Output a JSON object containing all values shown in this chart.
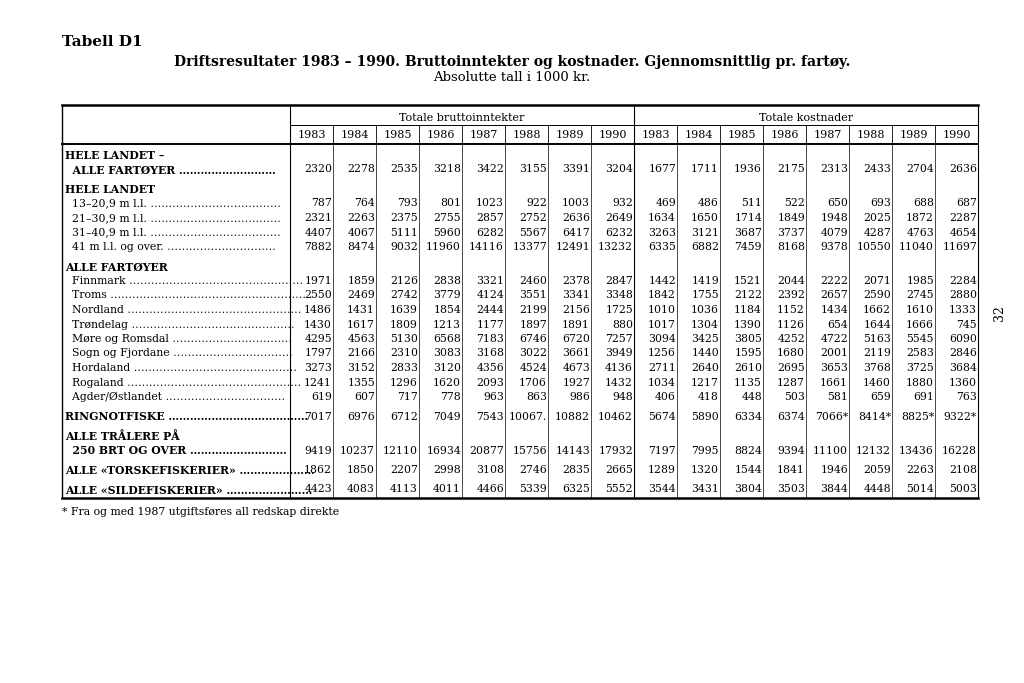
{
  "title_label": "Tabell D1",
  "title_main": "Driftsresultater 1983 – 1990. Bruttoinntekter og kostnader. Gjennomsnittlig pr. fartøy.",
  "title_sub": "Absolutte tall i 1000 kr.",
  "col_header_left": "Totale bruttoinntekter",
  "col_header_right": "Totale kostnader",
  "years": [
    "1983",
    "1984",
    "1985",
    "1986",
    "1987",
    "1988",
    "1989",
    "1990"
  ],
  "footnote": "* Fra og med 1987 utgiftsføres all redskap direkte",
  "page_number": "32",
  "rows": [
    {
      "label1": "HELE LANDET –",
      "label2": "  ALLE FARTØYER ………………………",
      "bold1": true,
      "bold2": true,
      "brutto": [
        "2320",
        "2278",
        "2535",
        "3218",
        "3422",
        "3155",
        "3391",
        "3204"
      ],
      "kostnader": [
        "1677",
        "1711",
        "1936",
        "2175",
        "2313",
        "2433",
        "2704",
        "2636"
      ],
      "blank_before": true,
      "two_line": true
    },
    {
      "label1": "HELE LANDET",
      "label2": "",
      "bold1": true,
      "bold2": false,
      "brutto": [
        null,
        null,
        null,
        null,
        null,
        null,
        null,
        null
      ],
      "kostnader": [
        null,
        null,
        null,
        null,
        null,
        null,
        null,
        null
      ],
      "blank_before": true,
      "two_line": false,
      "header_only": true
    },
    {
      "label1": "  13–20,9 m l.l. ………………………………",
      "label2": "",
      "bold1": false,
      "bold2": false,
      "brutto": [
        "787",
        "764",
        "793",
        "801",
        "1023",
        "922",
        "1003",
        "932"
      ],
      "kostnader": [
        "469",
        "486",
        "511",
        "522",
        "650",
        "693",
        "688",
        "687"
      ],
      "blank_before": false,
      "two_line": false
    },
    {
      "label1": "  21–30,9 m l.l. ………………………………",
      "label2": "",
      "bold1": false,
      "bold2": false,
      "brutto": [
        "2321",
        "2263",
        "2375",
        "2755",
        "2857",
        "2752",
        "2636",
        "2649"
      ],
      "kostnader": [
        "1634",
        "1650",
        "1714",
        "1849",
        "1948",
        "2025",
        "1872",
        "2287"
      ],
      "blank_before": false,
      "two_line": false
    },
    {
      "label1": "  31–40,9 m l.l. ………………………………",
      "label2": "",
      "bold1": false,
      "bold2": false,
      "brutto": [
        "4407",
        "4067",
        "5111",
        "5960",
        "6282",
        "5567",
        "6417",
        "6232"
      ],
      "kostnader": [
        "3263",
        "3121",
        "3687",
        "3737",
        "4079",
        "4287",
        "4763",
        "4654"
      ],
      "blank_before": false,
      "two_line": false
    },
    {
      "label1": "  41 m l.l. og over. …………………………",
      "label2": "",
      "bold1": false,
      "bold2": false,
      "brutto": [
        "7882",
        "8474",
        "9032",
        "11960",
        "14116",
        "13377",
        "12491",
        "13232"
      ],
      "kostnader": [
        "6335",
        "6882",
        "7459",
        "8168",
        "9378",
        "10550",
        "11040",
        "11697"
      ],
      "blank_before": false,
      "two_line": false
    },
    {
      "label1": "ALLE FARTØYER",
      "label2": "",
      "bold1": true,
      "bold2": false,
      "brutto": [
        null,
        null,
        null,
        null,
        null,
        null,
        null,
        null
      ],
      "kostnader": [
        null,
        null,
        null,
        null,
        null,
        null,
        null,
        null
      ],
      "blank_before": true,
      "two_line": false,
      "header_only": true
    },
    {
      "label1": "  Finnmark …………………………………………",
      "label2": "",
      "bold1": false,
      "bold2": false,
      "brutto": [
        "1971",
        "1859",
        "2126",
        "2838",
        "3321",
        "2460",
        "2378",
        "2847"
      ],
      "kostnader": [
        "1442",
        "1419",
        "1521",
        "2044",
        "2222",
        "2071",
        "1985",
        "2284"
      ],
      "blank_before": false,
      "two_line": false
    },
    {
      "label1": "  Troms ………………………………………………",
      "label2": "",
      "bold1": false,
      "bold2": false,
      "brutto": [
        "2550",
        "2469",
        "2742",
        "3779",
        "4124",
        "3551",
        "3341",
        "3348"
      ],
      "kostnader": [
        "1842",
        "1755",
        "2122",
        "2392",
        "2657",
        "2590",
        "2745",
        "2880"
      ],
      "blank_before": false,
      "two_line": false
    },
    {
      "label1": "  Nordland …………………………………………",
      "label2": "",
      "bold1": false,
      "bold2": false,
      "brutto": [
        "1486",
        "1431",
        "1639",
        "1854",
        "2444",
        "2199",
        "2156",
        "1725"
      ],
      "kostnader": [
        "1010",
        "1036",
        "1184",
        "1152",
        "1434",
        "1662",
        "1610",
        "1333"
      ],
      "blank_before": false,
      "two_line": false
    },
    {
      "label1": "  Trøndelag ………………………………………",
      "label2": "",
      "bold1": false,
      "bold2": false,
      "brutto": [
        "1430",
        "1617",
        "1809",
        "1213",
        "1177",
        "1897",
        "1891",
        "880"
      ],
      "kostnader": [
        "1017",
        "1304",
        "1390",
        "1126",
        "654",
        "1644",
        "1666",
        "745"
      ],
      "blank_before": false,
      "two_line": false
    },
    {
      "label1": "  Møre og Romsdal ……………………………",
      "label2": "",
      "bold1": false,
      "bold2": false,
      "brutto": [
        "4295",
        "4563",
        "5130",
        "6568",
        "7183",
        "6746",
        "6720",
        "7257"
      ],
      "kostnader": [
        "3094",
        "3425",
        "3805",
        "4252",
        "4722",
        "5163",
        "5545",
        "6090"
      ],
      "blank_before": false,
      "two_line": false
    },
    {
      "label1": "  Sogn og Fjordane ……………………………",
      "label2": "",
      "bold1": false,
      "bold2": false,
      "brutto": [
        "1797",
        "2166",
        "2310",
        "3083",
        "3168",
        "3022",
        "3661",
        "3949"
      ],
      "kostnader": [
        "1256",
        "1440",
        "1595",
        "1680",
        "2001",
        "2119",
        "2583",
        "2846"
      ],
      "blank_before": false,
      "two_line": false
    },
    {
      "label1": "  Hordaland ………………………………………",
      "label2": "",
      "bold1": false,
      "bold2": false,
      "brutto": [
        "3273",
        "3152",
        "2833",
        "3120",
        "4356",
        "4524",
        "4673",
        "4136"
      ],
      "kostnader": [
        "2711",
        "2640",
        "2610",
        "2695",
        "3653",
        "3768",
        "3725",
        "3684"
      ],
      "blank_before": false,
      "two_line": false
    },
    {
      "label1": "  Rogaland …………………………………………",
      "label2": "",
      "bold1": false,
      "bold2": false,
      "brutto": [
        "1241",
        "1355",
        "1296",
        "1620",
        "2093",
        "1706",
        "1927",
        "1432"
      ],
      "kostnader": [
        "1034",
        "1217",
        "1135",
        "1287",
        "1661",
        "1460",
        "1880",
        "1360"
      ],
      "blank_before": false,
      "two_line": false
    },
    {
      "label1": "  Agder/Østlandet ……………………………",
      "label2": "",
      "bold1": false,
      "bold2": false,
      "brutto": [
        "619",
        "607",
        "717",
        "778",
        "963",
        "863",
        "986",
        "948"
      ],
      "kostnader": [
        "406",
        "418",
        "448",
        "503",
        "581",
        "659",
        "691",
        "763"
      ],
      "blank_before": false,
      "two_line": false
    },
    {
      "label1": "RINGNOTFISKE …………………………………",
      "label2": "",
      "bold1": true,
      "bold2": false,
      "brutto": [
        "7017",
        "6976",
        "6712",
        "7049",
        "7543",
        "10067.",
        "10882",
        "10462"
      ],
      "kostnader": [
        "5674",
        "5890",
        "6334",
        "6374",
        "7066*",
        "8414*",
        "8825*",
        "9322*"
      ],
      "blank_before": true,
      "two_line": false
    },
    {
      "label1": "ALLE TRÅLERE PÅ",
      "label2": "  250 BRT OG OVER ………………………",
      "bold1": true,
      "bold2": true,
      "brutto": [
        "9419",
        "10237",
        "12110",
        "16934",
        "20877",
        "15756",
        "14143",
        "17932"
      ],
      "kostnader": [
        "7197",
        "7995",
        "8824",
        "9394",
        "11100",
        "12132",
        "13436",
        "16228"
      ],
      "blank_before": true,
      "two_line": true
    },
    {
      "label1": "ALLE «TORSKEFISKERIER» …………………",
      "label2": "",
      "bold1": true,
      "bold2": false,
      "brutto": [
        "1862",
        "1850",
        "2207",
        "2998",
        "3108",
        "2746",
        "2835",
        "2665"
      ],
      "kostnader": [
        "1289",
        "1320",
        "1544",
        "1841",
        "1946",
        "2059",
        "2263",
        "2108"
      ],
      "blank_before": true,
      "two_line": false
    },
    {
      "label1": "ALLE «SILDEFISKERIER» ……………………",
      "label2": "",
      "bold1": true,
      "bold2": false,
      "brutto": [
        "4423",
        "4083",
        "4113",
        "4011",
        "4466",
        "5339",
        "6325",
        "5552"
      ],
      "kostnader": [
        "3544",
        "3431",
        "3804",
        "3503",
        "3844",
        "4448",
        "5014",
        "5003"
      ],
      "blank_before": true,
      "two_line": false
    }
  ]
}
